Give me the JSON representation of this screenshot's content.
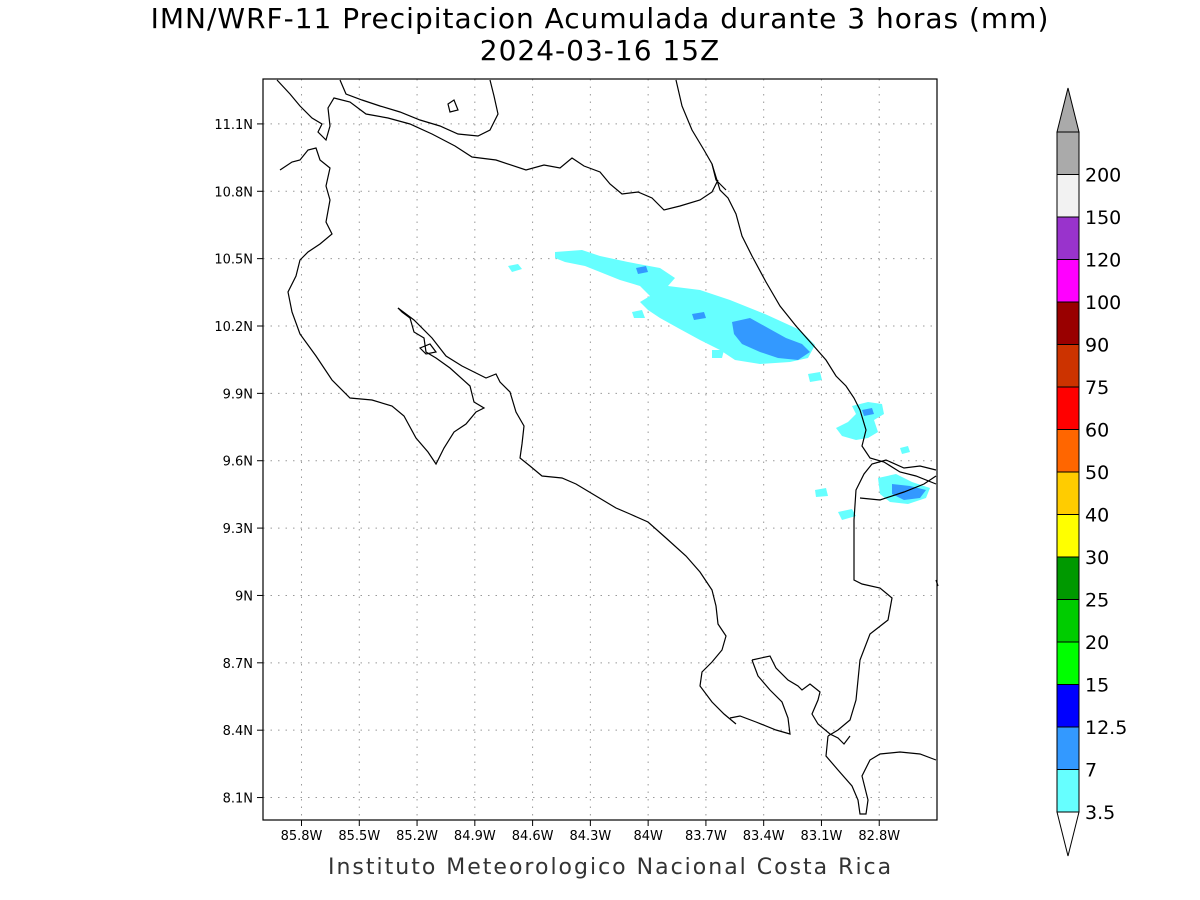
{
  "title_line1": "IMN/WRF-11 Precipitacion Acumulada durante 3 horas (mm)",
  "title_line2": "2024-03-16 15Z",
  "footer": "Instituto Meteorologico Nacional Costa Rica",
  "map": {
    "lon_range": [
      -86.0,
      -82.5
    ],
    "lat_range": [
      8.0,
      11.3
    ],
    "lon_ticks": [
      "85.8W",
      "85.5W",
      "85.2W",
      "84.9W",
      "84.6W",
      "84.3W",
      "84W",
      "83.7W",
      "83.4W",
      "83.1W",
      "82.8W"
    ],
    "lon_values": [
      -85.8,
      -85.5,
      -85.2,
      -84.9,
      -84.6,
      -84.3,
      -84.0,
      -83.7,
      -83.4,
      -83.1,
      -82.8
    ],
    "lat_ticks": [
      "11.1N",
      "10.8N",
      "10.5N",
      "10.2N",
      "9.9N",
      "9.6N",
      "9.3N",
      "9N",
      "8.7N",
      "8.4N",
      "8.1N"
    ],
    "lat_values": [
      11.1,
      10.8,
      10.5,
      10.2,
      9.9,
      9.6,
      9.3,
      9.0,
      8.7,
      8.4,
      8.1
    ],
    "grid": "dotted",
    "land_color": "#ffffff",
    "coast_color": "#000000",
    "precip_areas": [
      {
        "level": "3.5",
        "color": "#66ffff",
        "region": "Caribbean slope band near 10.4N 84.0W to 10.1N 83.1W"
      },
      {
        "level": "7",
        "color": "#3399ff",
        "region": "near 10.15N 83.3W"
      },
      {
        "level": "3.5",
        "color": "#66ffff",
        "region": "near 9.7N 82.9W"
      },
      {
        "level": "7",
        "color": "#3399ff",
        "region": "near 9.45N 82.7W"
      }
    ]
  },
  "legend": {
    "labels": [
      "3.5",
      "7",
      "12.5",
      "15",
      "20",
      "25",
      "30",
      "40",
      "50",
      "60",
      "75",
      "90",
      "100",
      "120",
      "150",
      "200"
    ],
    "colors": [
      "#66ffff",
      "#3399ff",
      "#0000ff",
      "#00ff00",
      "#00cc00",
      "#009900",
      "#ffff00",
      "#ffcc00",
      "#ff6600",
      "#ff0000",
      "#cc3300",
      "#990000",
      "#ff00ff",
      "#9933cc",
      "#f2f2f2",
      "#aaaaaa"
    ],
    "under_color": "#ffffff",
    "over_color": "#aaaaaa"
  }
}
